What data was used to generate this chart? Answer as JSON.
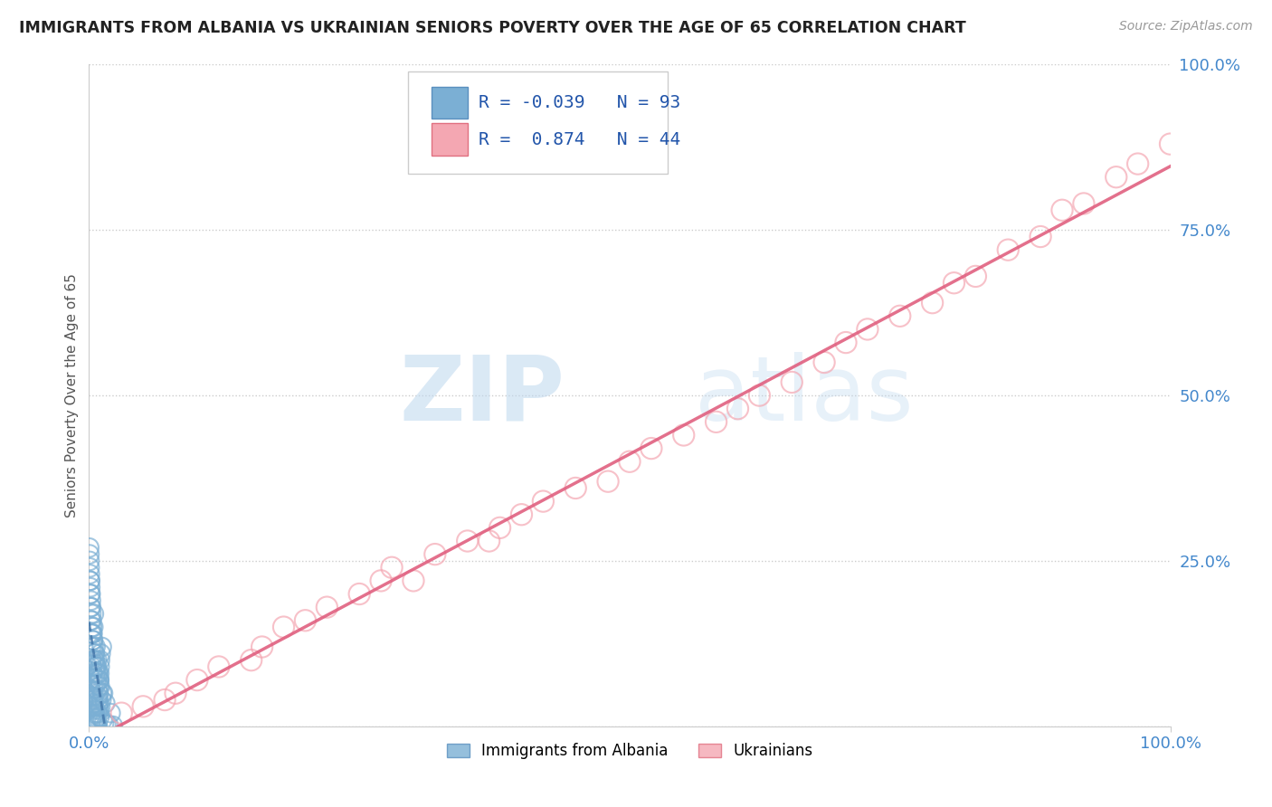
{
  "title": "IMMIGRANTS FROM ALBANIA VS UKRAINIAN SENIORS POVERTY OVER THE AGE OF 65 CORRELATION CHART",
  "source": "Source: ZipAtlas.com",
  "ylabel": "Seniors Poverty Over the Age of 65",
  "watermark_zip": "ZIP",
  "watermark_atlas": "atlas",
  "legend_blue_label": "Immigrants from Albania",
  "legend_pink_label": "Ukrainians",
  "blue_R": -0.039,
  "blue_N": 93,
  "pink_R": 0.874,
  "pink_N": 44,
  "blue_color": "#7BAFD4",
  "pink_color": "#F4A7B2",
  "blue_edge_color": "#5A8FBF",
  "pink_edge_color": "#E07080",
  "blue_line_color": "#4477AA",
  "pink_line_color": "#E06080",
  "background_color": "#FFFFFF",
  "grid_color": "#CCCCCC",
  "title_color": "#222222",
  "axis_tick_color": "#4488CC",
  "blue_x": [
    0.3,
    0.5,
    0.8,
    0.2,
    0.4,
    0.6,
    0.1,
    0.7,
    0.9,
    0.15,
    0.25,
    0.35,
    0.45,
    0.55,
    0.65,
    0.75,
    0.85,
    0.95,
    1.0,
    1.2,
    0.05,
    0.08,
    0.12,
    0.18,
    0.22,
    0.28,
    0.32,
    0.38,
    0.42,
    0.48,
    0.52,
    0.58,
    0.62,
    0.68,
    0.72,
    0.78,
    0.82,
    0.88,
    0.92,
    0.98,
    1.05,
    1.15,
    1.3,
    1.5,
    2.0,
    0.02,
    0.04,
    0.06,
    0.09,
    0.11,
    0.14,
    0.16,
    0.19,
    0.21,
    0.24,
    0.26,
    0.29,
    0.31,
    0.34,
    0.36,
    0.39,
    0.41,
    0.44,
    0.46,
    0.49,
    0.51,
    0.54,
    0.56,
    0.59,
    0.61,
    0.64,
    0.66,
    0.69,
    0.71,
    0.74,
    0.76,
    0.79,
    0.81,
    0.84,
    0.86,
    0.89,
    0.91,
    0.94,
    0.96,
    0.99,
    1.02,
    1.08,
    1.18,
    1.25,
    1.4,
    1.6,
    1.8,
    2.2
  ],
  "blue_y": [
    14.0,
    10.0,
    8.0,
    18.0,
    15.0,
    12.0,
    22.0,
    9.0,
    7.0,
    20.0,
    16.0,
    13.0,
    17.0,
    11.0,
    9.0,
    10.0,
    8.0,
    7.0,
    6.0,
    5.0,
    25.0,
    23.0,
    21.0,
    19.0,
    17.0,
    15.0,
    14.0,
    13.0,
    12.0,
    11.0,
    10.0,
    9.0,
    8.0,
    7.0,
    6.5,
    5.5,
    4.5,
    3.5,
    2.5,
    1.5,
    3.0,
    4.0,
    5.0,
    3.5,
    2.0,
    27.0,
    26.0,
    24.0,
    22.0,
    20.0,
    18.0,
    16.0,
    14.0,
    12.0,
    10.0,
    9.0,
    8.0,
    7.0,
    6.0,
    5.0,
    4.5,
    4.0,
    3.5,
    3.0,
    2.5,
    2.0,
    1.8,
    1.5,
    1.2,
    1.0,
    0.8,
    0.6,
    0.5,
    0.4,
    0.3,
    0.2,
    0.1,
    2.0,
    3.0,
    4.0,
    5.0,
    6.0,
    7.0,
    8.0,
    9.0,
    10.0,
    11.0,
    12.0,
    1.0,
    0.5,
    0.3,
    0.2,
    0.1
  ],
  "pink_x": [
    5.0,
    10.0,
    15.0,
    18.0,
    22.0,
    8.0,
    12.0,
    25.0,
    30.0,
    20.0,
    35.0,
    28.0,
    40.0,
    32.0,
    45.0,
    38.0,
    50.0,
    42.0,
    55.0,
    48.0,
    60.0,
    52.0,
    65.0,
    58.0,
    70.0,
    62.0,
    75.0,
    68.0,
    80.0,
    72.0,
    85.0,
    78.0,
    90.0,
    82.0,
    95.0,
    88.0,
    100.0,
    92.0,
    97.0,
    3.0,
    7.0,
    16.0,
    27.0,
    37.0
  ],
  "pink_y": [
    3.0,
    7.0,
    10.0,
    15.0,
    18.0,
    5.0,
    9.0,
    20.0,
    22.0,
    16.0,
    28.0,
    24.0,
    32.0,
    26.0,
    36.0,
    30.0,
    40.0,
    34.0,
    44.0,
    37.0,
    48.0,
    42.0,
    52.0,
    46.0,
    58.0,
    50.0,
    62.0,
    55.0,
    67.0,
    60.0,
    72.0,
    64.0,
    78.0,
    68.0,
    83.0,
    74.0,
    88.0,
    79.0,
    85.0,
    2.0,
    4.0,
    12.0,
    22.0,
    28.0
  ],
  "xlim": [
    0.0,
    100.0
  ],
  "ylim": [
    0.0,
    100.0
  ],
  "x_ticks": [
    0.0,
    100.0
  ],
  "x_tick_labels": [
    "0.0%",
    "100.0%"
  ],
  "y_ticks": [
    0.0,
    25.0,
    50.0,
    75.0,
    100.0
  ],
  "y_tick_labels": [
    "",
    "25.0%",
    "50.0%",
    "75.0%",
    "100.0%"
  ]
}
